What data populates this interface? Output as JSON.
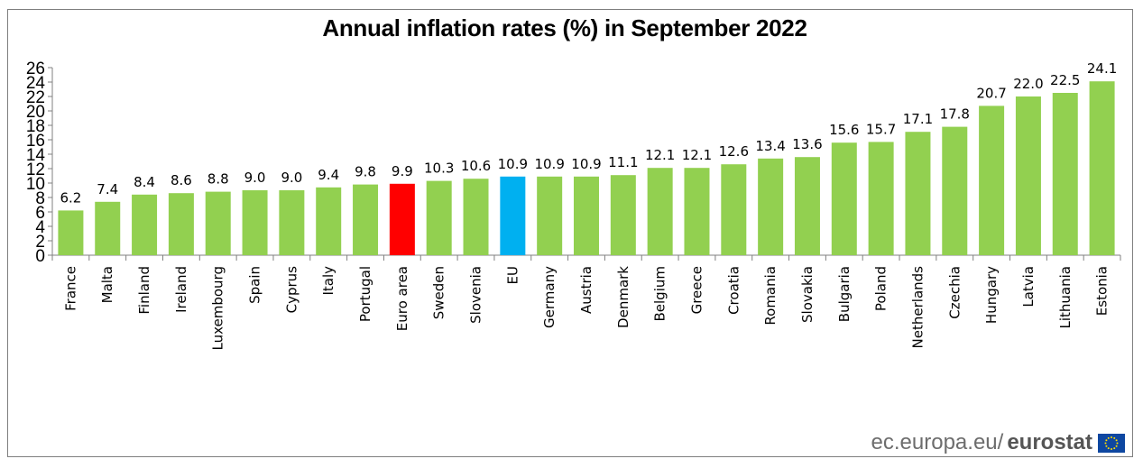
{
  "chart_data": {
    "type": "bar",
    "title": "Annual inflation rates (%) in September 2022",
    "categories": [
      "France",
      "Malta",
      "Finland",
      "Ireland",
      "Luxembourg",
      "Spain",
      "Cyprus",
      "Italy",
      "Portugal",
      "Euro area",
      "Sweden",
      "Slovenia",
      "EU",
      "Germany",
      "Austria",
      "Denmark",
      "Belgium",
      "Greece",
      "Croatia",
      "Romania",
      "Slovakia",
      "Bulgaria",
      "Poland",
      "Netherlands",
      "Czechia",
      "Hungary",
      "Latvia",
      "Lithuania",
      "Estonia"
    ],
    "values": [
      6.2,
      7.4,
      8.4,
      8.6,
      8.8,
      9.0,
      9.0,
      9.4,
      9.8,
      9.9,
      10.3,
      10.6,
      10.9,
      10.9,
      10.9,
      11.1,
      12.1,
      12.1,
      12.6,
      13.4,
      13.6,
      15.6,
      15.7,
      17.1,
      17.8,
      20.7,
      22.0,
      22.5,
      24.1
    ],
    "value_labels": [
      "6.2",
      "7.4",
      "8.4",
      "8.6",
      "8.8",
      "9.0",
      "9.0",
      "9.4",
      "9.8",
      "9.9",
      "10.3",
      "10.6",
      "10.9",
      "10.9",
      "10.9",
      "11.1",
      "12.1",
      "12.1",
      "12.6",
      "13.4",
      "13.6",
      "15.6",
      "15.7",
      "17.1",
      "17.8",
      "20.7",
      "22.0",
      "22.5",
      "24.1"
    ],
    "yticks": [
      "0",
      "2",
      "4",
      "6",
      "8",
      "10",
      "12",
      "14",
      "16",
      "18",
      "20",
      "22",
      "24",
      "26"
    ],
    "ylim": [
      0,
      26
    ],
    "xlabel": "",
    "ylabel": "",
    "grid": false,
    "legend": "none",
    "colors": {
      "default": "#92d050",
      "Euro area": "#ff0000",
      "EU": "#00b0f0",
      "axis": "#808080"
    }
  },
  "source": {
    "prefix": "ec.europa.eu/",
    "brand": "eurostat"
  },
  "icons": {
    "logo": "eu-flag-icon"
  }
}
